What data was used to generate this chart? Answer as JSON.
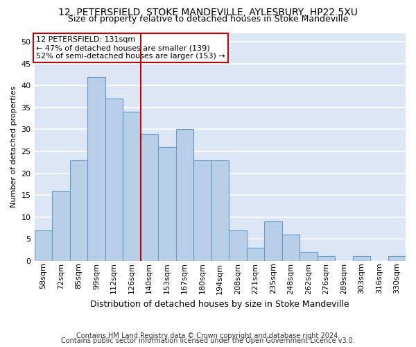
{
  "title_line1": "12, PETERSFIELD, STOKE MANDEVILLE, AYLESBURY, HP22 5XU",
  "title_line2": "Size of property relative to detached houses in Stoke Mandeville",
  "xlabel": "Distribution of detached houses by size in Stoke Mandeville",
  "ylabel": "Number of detached properties",
  "footer_line1": "Contains HM Land Registry data © Crown copyright and database right 2024.",
  "footer_line2": "Contains public sector information licensed under the Open Government Licence v3.0.",
  "categories": [
    "58sqm",
    "72sqm",
    "85sqm",
    "99sqm",
    "112sqm",
    "126sqm",
    "140sqm",
    "153sqm",
    "167sqm",
    "180sqm",
    "194sqm",
    "208sqm",
    "221sqm",
    "235sqm",
    "248sqm",
    "262sqm",
    "276sqm",
    "289sqm",
    "303sqm",
    "316sqm",
    "330sqm"
  ],
  "values": [
    7,
    16,
    23,
    42,
    37,
    34,
    29,
    26,
    30,
    23,
    23,
    7,
    3,
    9,
    6,
    2,
    1,
    0,
    1,
    0,
    1
  ],
  "bar_color": "#b8cfe8",
  "bar_edge_color": "#6699cc",
  "vline_x": 5.5,
  "vline_color": "#cc0000",
  "annotation_title": "12 PETERSFIELD: 131sqm",
  "annotation_line2": "← 47% of detached houses are smaller (139)",
  "annotation_line3": "52% of semi-detached houses are larger (153) →",
  "ylim": [
    0,
    52
  ],
  "yticks": [
    0,
    5,
    10,
    15,
    20,
    25,
    30,
    35,
    40,
    45,
    50
  ],
  "background_color": "#dce6f5",
  "grid_color": "white",
  "title_fontsize": 10,
  "subtitle_fontsize": 9,
  "xlabel_fontsize": 9,
  "ylabel_fontsize": 8,
  "tick_fontsize": 8,
  "annot_fontsize": 8,
  "footer_fontsize": 7
}
